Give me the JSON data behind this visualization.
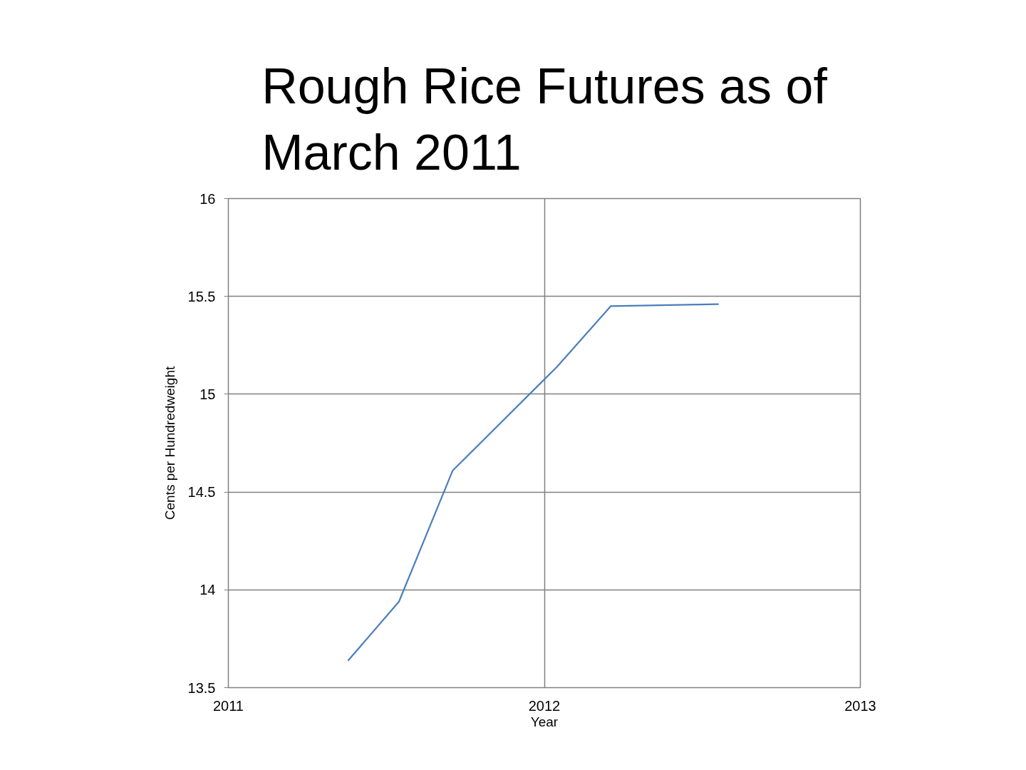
{
  "chart_data": {
    "type": "line",
    "title": "Rough Rice Futures as of March 2011",
    "xlabel": "Year",
    "ylabel": "Cents per Hundredweight",
    "x": [
      2011.38,
      2011.54,
      2011.71,
      2012.04,
      2012.21,
      2012.55
    ],
    "series": [
      {
        "color": "#4a7ebb",
        "values": [
          13.64,
          13.94,
          14.61,
          15.14,
          15.45,
          15.46
        ]
      }
    ],
    "xlim": [
      2011,
      2013
    ],
    "ylim": [
      13.5,
      16
    ],
    "xticks": [
      2011,
      2012,
      2013
    ],
    "yticks": [
      13.5,
      14,
      14.5,
      15,
      15.5,
      16
    ],
    "grid": true,
    "marker": "none",
    "line_style": "solid"
  }
}
